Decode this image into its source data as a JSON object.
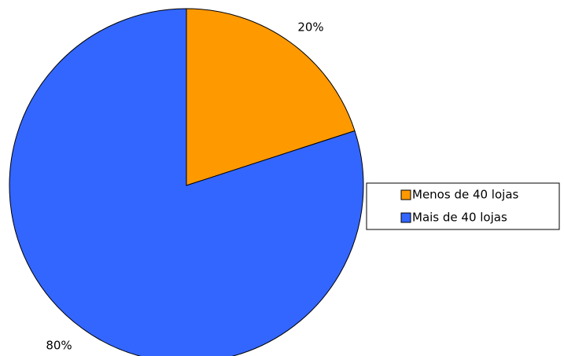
{
  "chart_data": {
    "type": "pie",
    "categories": [
      "Menos de 40 lojas",
      "Mais de 40 lojas"
    ],
    "values": [
      20,
      80
    ],
    "value_labels": [
      "20%",
      "80%"
    ],
    "colors": [
      "#ff9900",
      "#3366ff"
    ],
    "legend": "right"
  }
}
